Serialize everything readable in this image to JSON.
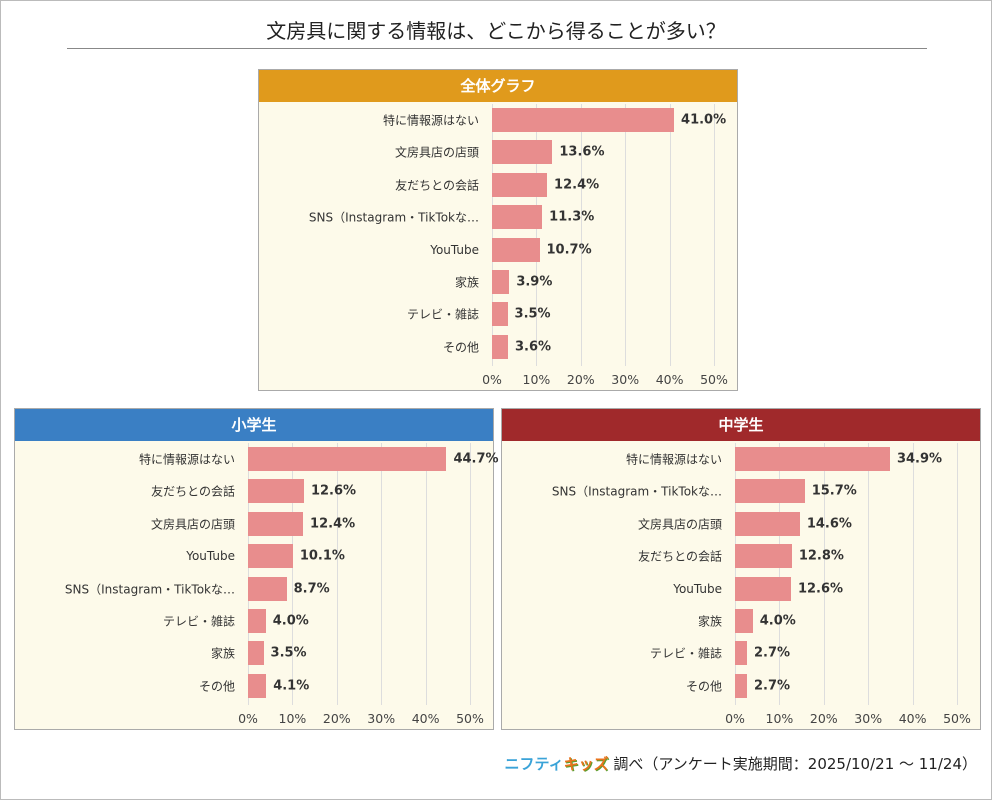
{
  "title": "文房具に関する情報は、どこから得ることが多い？",
  "footer": {
    "logo_text_1": "ニフティ",
    "logo_text_2": "キッズ",
    "text": "調べ（アンケート実施期間：2025/10/21 ～ 11/24）"
  },
  "chart_data": [
    {
      "type": "bar",
      "orientation": "horizontal",
      "title": "全体グラフ",
      "header_color": "#e09a1c",
      "bar_color": "#e88d8d",
      "categories": [
        "特に情報源はない",
        "文房具店の店頭",
        "友だちとの会話",
        "SNS（Instagram・TikTokな…",
        "YouTube",
        "家族",
        "テレビ・雑誌",
        "その他"
      ],
      "values": [
        41.0,
        13.6,
        12.4,
        11.3,
        10.7,
        3.9,
        3.5,
        3.6
      ],
      "xlim": [
        0,
        50
      ],
      "ticks": [
        "0%",
        "10%",
        "20%",
        "30%",
        "40%",
        "50%"
      ],
      "grid": true
    },
    {
      "type": "bar",
      "orientation": "horizontal",
      "title": "小学生",
      "header_color": "#3a7fc4",
      "bar_color": "#e88d8d",
      "categories": [
        "特に情報源はない",
        "友だちとの会話",
        "文房具店の店頭",
        "YouTube",
        "SNS（Instagram・TikTokな…",
        "テレビ・雑誌",
        "家族",
        "その他"
      ],
      "values": [
        44.7,
        12.6,
        12.4,
        10.1,
        8.7,
        4.0,
        3.5,
        4.1
      ],
      "xlim": [
        0,
        50
      ],
      "ticks": [
        "0%",
        "10%",
        "20%",
        "30%",
        "40%",
        "50%"
      ],
      "grid": true
    },
    {
      "type": "bar",
      "orientation": "horizontal",
      "title": "中学生",
      "header_color": "#a0292b",
      "bar_color": "#e88d8d",
      "categories": [
        "特に情報源はない",
        "SNS（Instagram・TikTokな…",
        "文房具店の店頭",
        "友だちとの会話",
        "YouTube",
        "家族",
        "テレビ・雑誌",
        "その他"
      ],
      "values": [
        34.9,
        15.7,
        14.6,
        12.8,
        12.6,
        4.0,
        2.7,
        2.7
      ],
      "xlim": [
        0,
        50
      ],
      "ticks": [
        "0%",
        "10%",
        "20%",
        "30%",
        "40%",
        "50%"
      ],
      "grid": true
    }
  ]
}
